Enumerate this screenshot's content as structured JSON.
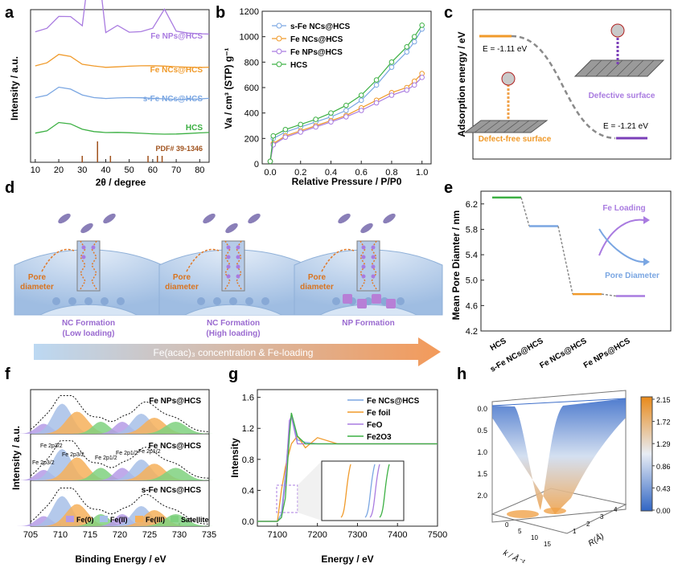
{
  "panels": {
    "a": "a",
    "b": "b",
    "c": "c",
    "d": "d",
    "e": "e",
    "f": "f",
    "g": "g",
    "h": "h"
  },
  "colors": {
    "purple": "#a97be0",
    "orange": "#f09a2a",
    "blue": "#7aa6e2",
    "green": "#3cb043",
    "gray": "#8a8a8a",
    "brown": "#a0521d"
  },
  "panel_a": {
    "ylabel": "Intensity / a.u.",
    "xlabel": "2θ / degree",
    "xticks": [
      "10",
      "20",
      "30",
      "40",
      "50",
      "60",
      "70",
      "80"
    ],
    "labels": [
      "Fe NPs@HCS",
      "Fe NCs@HCS",
      "s-Fe NCs@HCS",
      "HCS"
    ],
    "pdf": "PDF# 39-1346"
  },
  "panel_b": {
    "ylabel": "Va / cm³ (STP) g⁻¹",
    "xlabel": "Relative Pressure / P/P0",
    "xticks": [
      "0.0",
      "0.2",
      "0.4",
      "0.6",
      "0.8",
      "1.0"
    ],
    "yticks": [
      "0",
      "200",
      "400",
      "600",
      "800",
      "1000",
      "1200"
    ],
    "legend": [
      "s-Fe NCs@HCS",
      "Fe NCs@HCS",
      "Fe NPs@HCS",
      "HCS"
    ]
  },
  "panel_c": {
    "ylabel": "Adsorption energy / eV",
    "e1": "E = -1.11 eV",
    "e2": "E = -1.21 eV",
    "defective": "Defective surface",
    "defect_free": "Defect-free surface"
  },
  "panel_d": {
    "pore": "Pore diameter",
    "stages": [
      {
        "title": "NC Formation",
        "sub": "(Low loading)"
      },
      {
        "title": "NC Formation",
        "sub": "(High loading)"
      },
      {
        "title": "NP Formation",
        "sub": ""
      }
    ],
    "arrow_text": "Fe(acac)₃ concentration & Fe-loading"
  },
  "panel_e": {
    "ylabel": "Mean Pore Diamter / nm",
    "yticks": [
      "4.2",
      "4.6",
      "5.0",
      "5.4",
      "5.8",
      "6.2"
    ],
    "categories": [
      "HCS",
      "s-Fe NCs@HCS",
      "Fe NCs@HCS",
      "Fe NPs@HCS"
    ],
    "fe_loading": "Fe Loading",
    "pore_diameter": "Pore Diameter"
  },
  "panel_f": {
    "ylabel": "Intensity / a.u.",
    "xlabel": "Binding Energy / eV",
    "xticks": [
      "705",
      "710",
      "715",
      "720",
      "725",
      "730",
      "735"
    ],
    "labels": [
      "Fe NPs@HCS",
      "Fe NCs@HCS",
      "s-Fe NCs@HCS"
    ],
    "peaks": [
      "Fe 2p3/2",
      "Fe 2p3/2",
      "Fe 2p3/2",
      "Fe 2p1/2",
      "Fe 2p1/2",
      "Fe 2p1/2"
    ],
    "legend": [
      "Fe(0)",
      "Fe(II)",
      "Fe(III)",
      "Satellite"
    ]
  },
  "panel_g": {
    "ylabel": "Intensity",
    "xlabel": "Energy / eV",
    "xticks": [
      "7100",
      "7200",
      "7300",
      "7400",
      "7500"
    ],
    "yticks": [
      "0.0",
      "0.4",
      "0.8",
      "1.2",
      "1.6"
    ],
    "legend": [
      "Fe NCs@HCS",
      "Fe foil",
      "FeO",
      "Fe2O3"
    ]
  },
  "panel_h": {
    "colorbar": [
      "2.15",
      "1.72",
      "1.29",
      "0.86",
      "0.43",
      "0.00"
    ],
    "zticks": [
      "0.0",
      "0.5",
      "1.0",
      "1.5",
      "2.0"
    ],
    "xlabel": "R(Å)",
    "klabel": "k / Å⁻¹",
    "kticks": [
      "0",
      "5",
      "10",
      "15"
    ],
    "rticks": [
      "1",
      "2",
      "3",
      "4"
    ]
  },
  "chart_data": [
    {
      "type": "line",
      "title": "a",
      "xlabel": "2θ / degree",
      "ylabel": "Intensity / a.u.",
      "x": [
        10,
        15,
        20,
        25,
        30,
        35,
        40,
        45,
        50,
        55,
        60,
        65,
        70,
        75,
        80,
        84
      ],
      "series": [
        {
          "name": "Fe NPs@HCS",
          "values": [
            0.9,
            0.92,
            1.0,
            1.0,
            0.94,
            1.6,
            0.9,
            0.95,
            0.9,
            0.9,
            0.92,
            1.05,
            0.9,
            0.89,
            0.89,
            0.89
          ]
        },
        {
          "name": "Fe NCs@HCS",
          "values": [
            0.66,
            0.68,
            0.74,
            0.73,
            0.68,
            0.67,
            0.66,
            0.66,
            0.66,
            0.66,
            0.66,
            0.66,
            0.66,
            0.66,
            0.66,
            0.66
          ]
        },
        {
          "name": "s-Fe NCs@HCS",
          "values": [
            0.44,
            0.46,
            0.52,
            0.51,
            0.47,
            0.45,
            0.44,
            0.44,
            0.44,
            0.44,
            0.44,
            0.44,
            0.44,
            0.44,
            0.44,
            0.44
          ]
        },
        {
          "name": "HCS",
          "values": [
            0.2,
            0.22,
            0.28,
            0.27,
            0.23,
            0.21,
            0.2,
            0.2,
            0.2,
            0.2,
            0.2,
            0.2,
            0.2,
            0.2,
            0.2,
            0.2
          ]
        }
      ],
      "reference_lines": [
        30,
        36.5,
        42,
        58,
        62,
        64
      ]
    },
    {
      "type": "line",
      "title": "b",
      "xlabel": "Relative Pressure / P/P0",
      "ylabel": "Va / cm3 (STP) g-1",
      "x": [
        0.0,
        0.02,
        0.1,
        0.2,
        0.3,
        0.4,
        0.5,
        0.6,
        0.7,
        0.8,
        0.9,
        0.95,
        1.0
      ],
      "ylim": [
        0,
        1200
      ],
      "series": [
        {
          "name": "s-Fe NCs@HCS",
          "values": [
            20,
            200,
            250,
            290,
            330,
            370,
            420,
            500,
            620,
            760,
            880,
            960,
            1060
          ]
        },
        {
          "name": "Fe NCs@HCS",
          "values": [
            20,
            160,
            220,
            260,
            300,
            340,
            380,
            440,
            500,
            560,
            600,
            650,
            710
          ]
        },
        {
          "name": "Fe NPs@HCS",
          "values": [
            20,
            150,
            210,
            250,
            290,
            330,
            370,
            420,
            480,
            540,
            580,
            620,
            680
          ]
        },
        {
          "name": "HCS",
          "values": [
            20,
            220,
            270,
            310,
            350,
            400,
            460,
            540,
            660,
            800,
            920,
            1000,
            1090
          ]
        }
      ]
    },
    {
      "type": "line",
      "title": "e",
      "ylabel": "Mean Pore Diamter / nm",
      "categories": [
        "HCS",
        "s-Fe NCs@HCS",
        "Fe NCs@HCS",
        "Fe NPs@HCS"
      ],
      "values": [
        6.3,
        5.85,
        4.78,
        4.75
      ],
      "ylim": [
        4.2,
        6.4
      ]
    },
    {
      "type": "line",
      "title": "g",
      "xlabel": "Energy / eV",
      "ylabel": "Intensity",
      "x": [
        7050,
        7100,
        7110,
        7120,
        7130,
        7135,
        7150,
        7170,
        7200,
        7250,
        7300,
        7400,
        7500
      ],
      "ylim": [
        0,
        1.7
      ],
      "series": [
        {
          "name": "Fe NCs@HCS",
          "values": [
            0,
            0,
            0.1,
            0.6,
            1.2,
            1.38,
            1.05,
            1.02,
            1.0,
            1.0,
            1.0,
            1.0,
            1.0
          ]
        },
        {
          "name": "Fe foil",
          "values": [
            0,
            0,
            0.4,
            0.7,
            0.9,
            1.0,
            1.1,
            0.95,
            1.08,
            1.0,
            1.0,
            1.0,
            1.0
          ]
        },
        {
          "name": "FeO",
          "values": [
            0,
            0,
            0.05,
            0.5,
            1.3,
            1.35,
            1.0,
            1.0,
            1.0,
            1.0,
            1.0,
            1.0,
            1.0
          ]
        },
        {
          "name": "Fe2O3",
          "values": [
            0,
            0,
            0.05,
            0.3,
            1.1,
            1.4,
            1.1,
            1.0,
            1.0,
            1.0,
            1.0,
            1.0,
            1.0
          ]
        }
      ]
    }
  ]
}
